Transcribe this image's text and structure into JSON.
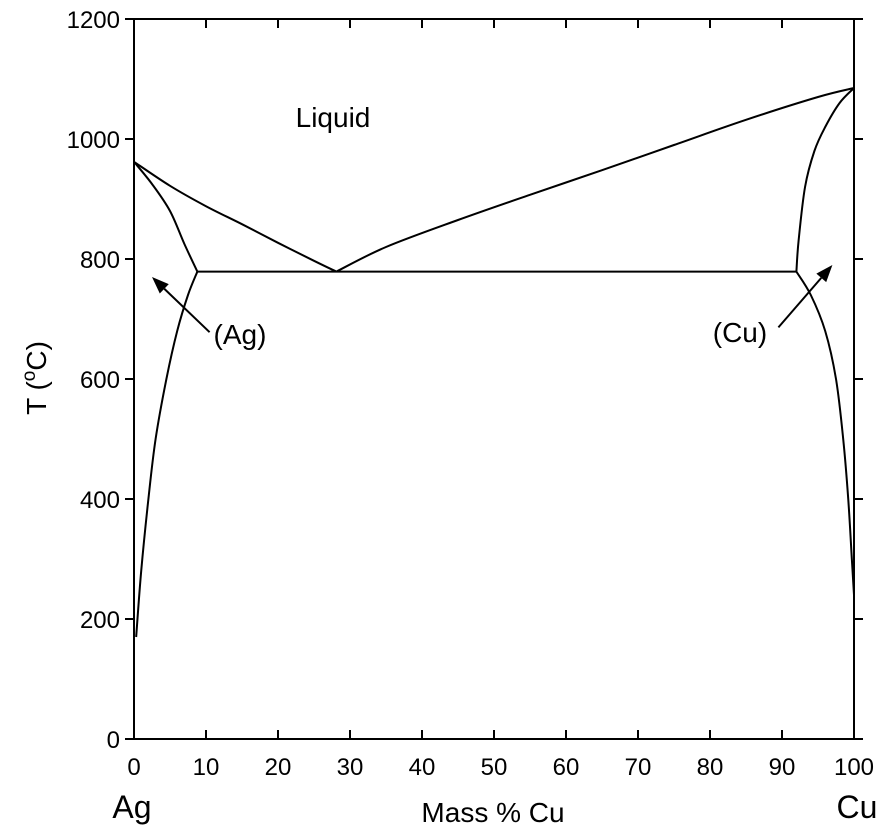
{
  "chart_data": {
    "type": "line",
    "title": "",
    "xlabel": "Mass % Cu",
    "ylabel_main": "T (",
    "ylabel_sup": "o",
    "ylabel_unit": "C)",
    "xlim": [
      0,
      100
    ],
    "ylim": [
      0,
      1200
    ],
    "x_ticks": [
      0,
      10,
      20,
      30,
      40,
      50,
      60,
      70,
      80,
      90,
      100
    ],
    "y_ticks": [
      0,
      200,
      400,
      600,
      800,
      1000,
      1200
    ],
    "grid": false,
    "end_labels": {
      "left": "Ag",
      "right": "Cu"
    },
    "region_labels": {
      "liquid": "Liquid",
      "ag_phase": "(Ag)",
      "cu_phase": "(Cu)"
    },
    "series": [
      {
        "key": "liquidus_ag",
        "x": [
          0,
          5,
          10,
          15,
          20,
          25,
          28.1
        ],
        "y": [
          962,
          922,
          888,
          858,
          827,
          797,
          779
        ]
      },
      {
        "key": "liquidus_cu",
        "x": [
          28.1,
          35,
          45,
          55,
          65,
          75,
          85,
          95,
          100
        ],
        "y": [
          779,
          820,
          865,
          907,
          948,
          990,
          1032,
          1070,
          1085
        ]
      },
      {
        "key": "solidus_ag",
        "x": [
          0,
          2.5,
          5,
          7,
          8.8
        ],
        "y": [
          962,
          925,
          880,
          825,
          779
        ]
      },
      {
        "key": "solvus_ag",
        "x": [
          8.8,
          7.5,
          6,
          4.5,
          3,
          2,
          1,
          0.3
        ],
        "y": [
          779,
          740,
          680,
          600,
          500,
          400,
          280,
          170
        ]
      },
      {
        "key": "eutectic",
        "x": [
          8.8,
          92
        ],
        "y": [
          779,
          779
        ]
      },
      {
        "key": "solidus_cu",
        "x": [
          100,
          98,
          96,
          94.5,
          93.2,
          92.3,
          92
        ],
        "y": [
          1085,
          1060,
          1020,
          980,
          920,
          830,
          779
        ]
      },
      {
        "key": "solvus_cu",
        "x": [
          92,
          94,
          96,
          97.5,
          98.5,
          99.2,
          99.7,
          100
        ],
        "y": [
          779,
          740,
          680,
          600,
          500,
          400,
          300,
          240
        ]
      }
    ],
    "arrows": [
      {
        "key": "ag",
        "from": [
          10.5,
          678
        ],
        "to": [
          2.5,
          770
        ]
      },
      {
        "key": "cu",
        "from": [
          89.5,
          686
        ],
        "to": [
          97,
          790
        ]
      }
    ]
  }
}
